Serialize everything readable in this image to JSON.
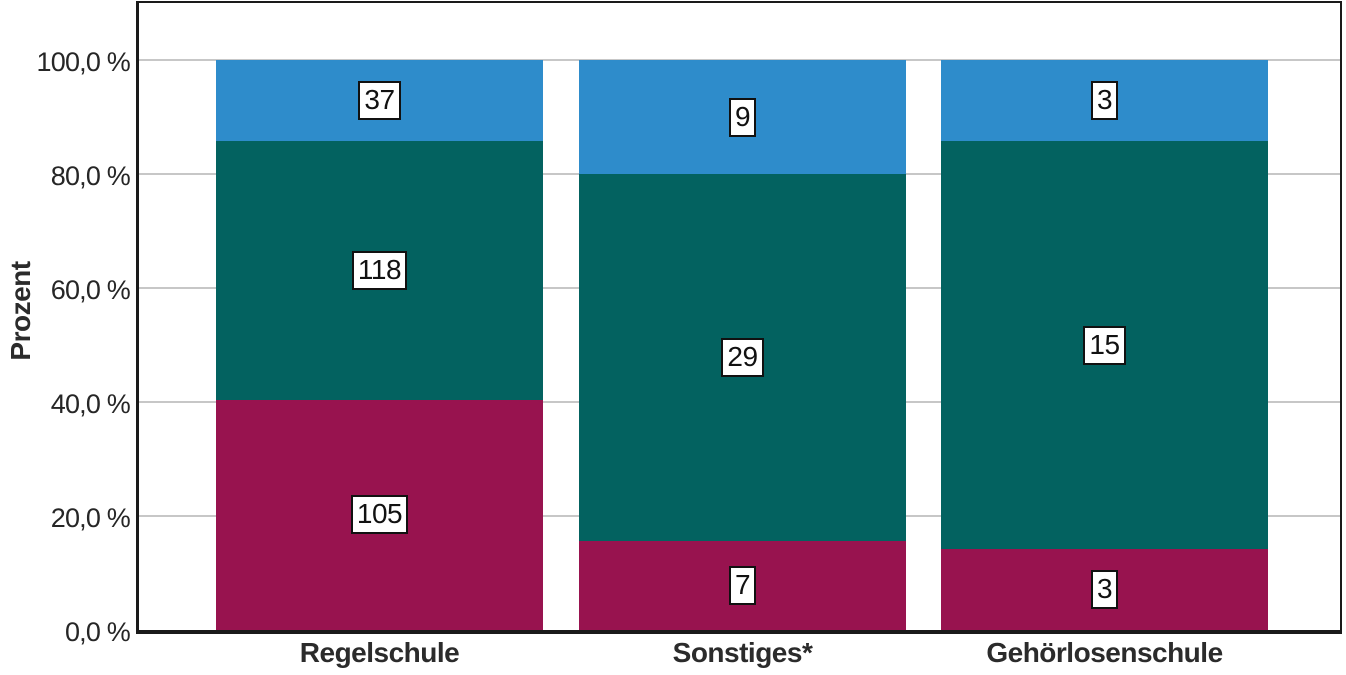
{
  "chart_data": {
    "type": "bar",
    "variant": "stacked-100-percent",
    "title": "",
    "xlabel": "",
    "ylabel": "Prozent",
    "categories": [
      "Regelschule",
      "Sonstiges*",
      "Gehörlosenschule"
    ],
    "series": [
      {
        "name": "bottom-segment",
        "color": "#98134F",
        "values": [
          105,
          7,
          3
        ]
      },
      {
        "name": "middle-segment",
        "color": "#036260",
        "values": [
          118,
          29,
          15
        ]
      },
      {
        "name": "top-segment",
        "color": "#2E8CCB",
        "values": [
          37,
          9,
          3
        ]
      }
    ],
    "y_ticks": [
      {
        "pct": 0,
        "label": "0,0 %"
      },
      {
        "pct": 20,
        "label": "20,0 %"
      },
      {
        "pct": 40,
        "label": "40,0 %"
      },
      {
        "pct": 60,
        "label": "60,0 %"
      },
      {
        "pct": 80,
        "label": "80,0 %"
      },
      {
        "pct": 100,
        "label": "100,0 %"
      }
    ],
    "ylim": [
      0,
      100
    ],
    "grid": true,
    "legend": "none"
  },
  "colors": {
    "grid": "#C7C7C7",
    "frame": "#1A1A1A",
    "text": "#262626"
  }
}
